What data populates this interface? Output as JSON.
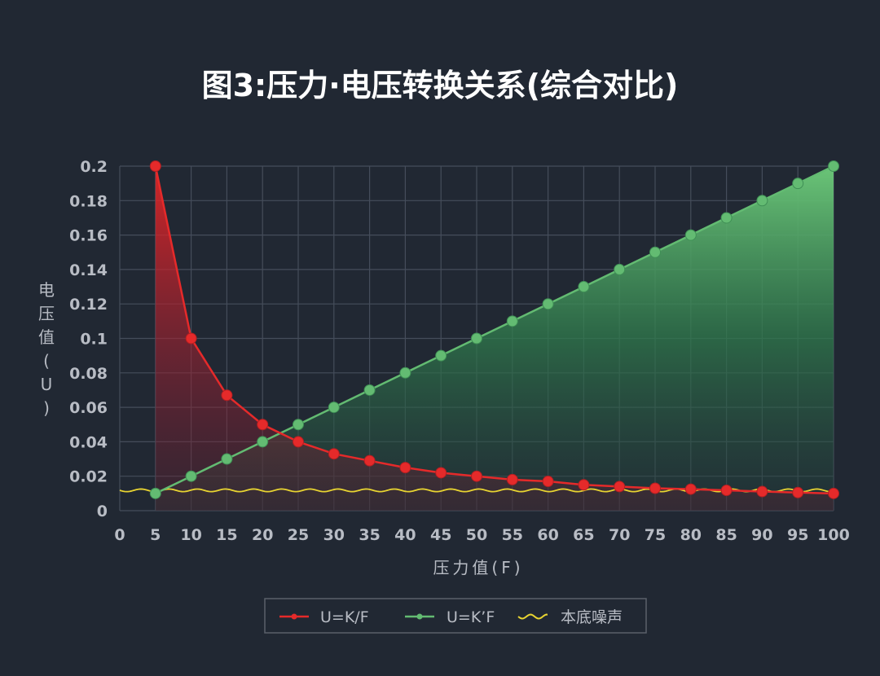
{
  "colors": {
    "background": "#212833",
    "grid": "#454d5b",
    "axis_text": "#b8bcc4",
    "title_text": "#ffffff",
    "red_series": "#e52a2a",
    "green_series": "#63bb72",
    "noise": "#e8d431",
    "legend_border": "#5a606b"
  },
  "chart_data": {
    "type": "line",
    "title": "图3:压力·电压转换关系(综合对比)",
    "xlabel": "压力值(F)",
    "ylabel": "电压值(U)",
    "xlim": [
      0,
      100
    ],
    "ylim": [
      0,
      0.2
    ],
    "x_ticks": [
      "0",
      "5",
      "10",
      "15",
      "20",
      "25",
      "30",
      "35",
      "40",
      "45",
      "50",
      "55",
      "60",
      "65",
      "70",
      "75",
      "80",
      "85",
      "90",
      "95",
      "100"
    ],
    "y_ticks": [
      "0",
      "0.02",
      "0.04",
      "0.06",
      "0.08",
      "0.1",
      "0.12",
      "0.14",
      "0.16",
      "0.18",
      "0.2"
    ],
    "grid": true,
    "legend_position": "bottom-center",
    "x": [
      5,
      10,
      15,
      20,
      25,
      30,
      35,
      40,
      45,
      50,
      55,
      60,
      65,
      70,
      75,
      80,
      85,
      90,
      95,
      100
    ],
    "series": [
      {
        "name": "U=K/F",
        "color": "#e52a2a",
        "values": [
          0.2,
          0.1,
          0.067,
          0.05,
          0.04,
          0.033,
          0.029,
          0.025,
          0.022,
          0.02,
          0.018,
          0.017,
          0.015,
          0.014,
          0.013,
          0.0125,
          0.0118,
          0.0111,
          0.0105,
          0.01
        ]
      },
      {
        "name": "U=K’F",
        "color": "#63bb72",
        "values": [
          0.01,
          0.02,
          0.03,
          0.04,
          0.05,
          0.06,
          0.07,
          0.08,
          0.09,
          0.1,
          0.11,
          0.12,
          0.13,
          0.14,
          0.15,
          0.16,
          0.17,
          0.18,
          0.19,
          0.2
        ]
      },
      {
        "name": "本底噪声",
        "color": "#e8d431",
        "baseline": 0.0118
      }
    ]
  }
}
